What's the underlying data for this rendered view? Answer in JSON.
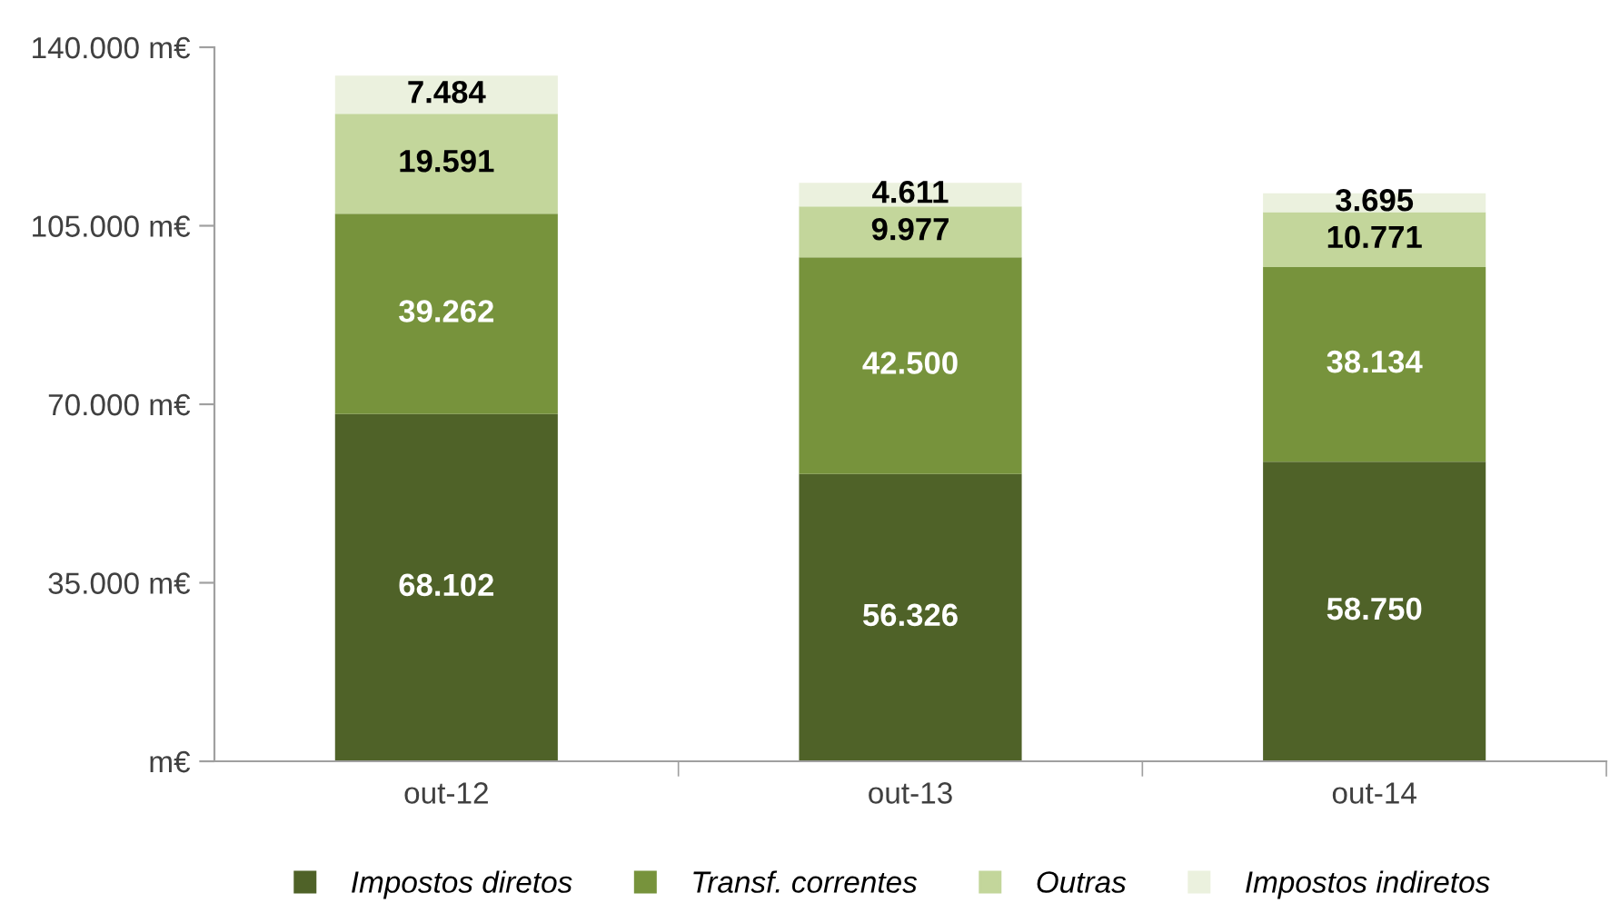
{
  "chart_data": {
    "type": "bar",
    "stacked": true,
    "categories": [
      "out-12",
      "out-13",
      "out-14"
    ],
    "series": [
      {
        "name": "Impostos diretos",
        "color": "#4f6228",
        "values": [
          68.102,
          56.326,
          58.75
        ],
        "value_labels": [
          "68.102",
          "56.326",
          "58.750"
        ]
      },
      {
        "name": "Transf. correntes",
        "color": "#77933c",
        "values": [
          39.262,
          42.5,
          38.134
        ],
        "value_labels": [
          "39.262",
          "42.500",
          "38.134"
        ]
      },
      {
        "name": "Outras",
        "color": "#c3d69b",
        "values": [
          19.591,
          9.977,
          10.771
        ],
        "value_labels": [
          "19.591",
          "9.977",
          "10.771"
        ]
      },
      {
        "name": "Impostos indiretos",
        "color": "#ebf1de",
        "values": [
          7.484,
          4.611,
          3.695
        ],
        "value_labels": [
          "7.484",
          "4.611",
          "3.695"
        ]
      }
    ],
    "ylim": [
      0,
      140
    ],
    "yticks": [
      {
        "value": 0,
        "label": "m€"
      },
      {
        "value": 35,
        "label": "35.000 m€"
      },
      {
        "value": 70,
        "label": "70.000 m€"
      },
      {
        "value": 105,
        "label": "105.000 m€"
      },
      {
        "value": 140,
        "label": "140.000 m€"
      }
    ],
    "grid": false,
    "legend": "bottom"
  }
}
